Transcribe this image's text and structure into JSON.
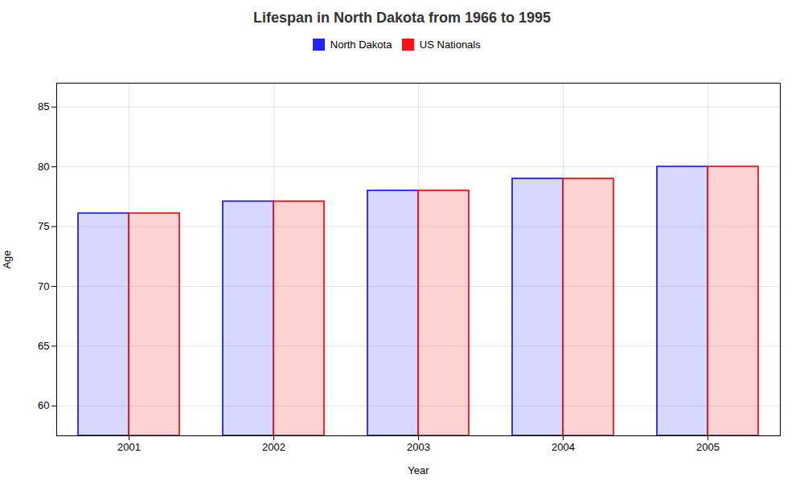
{
  "chart_data": {
    "type": "bar",
    "title": "Lifespan in North Dakota from 1966 to 1995",
    "xlabel": "Year",
    "ylabel": "Age",
    "categories": [
      "2001",
      "2002",
      "2003",
      "2004",
      "2005"
    ],
    "series": [
      {
        "name": "North Dakota",
        "color": "#2222ff",
        "values": [
          76.1,
          77.1,
          78.0,
          79.0,
          80.0
        ]
      },
      {
        "name": "US Nationals",
        "color": "#ff1111",
        "values": [
          76.1,
          77.1,
          78.0,
          79.0,
          80.0
        ]
      }
    ],
    "ylim": [
      57.5,
      87
    ],
    "yticks": [
      60,
      65,
      70,
      75,
      80,
      85
    ],
    "grid": true,
    "legend": "top"
  }
}
